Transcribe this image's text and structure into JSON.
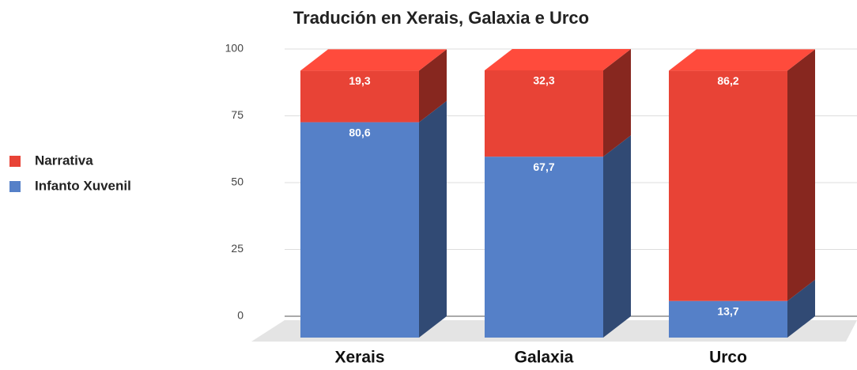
{
  "chart_data": {
    "type": "bar3d_stacked",
    "title": "Tradución en Xerais, Galaxia e Urco",
    "categories": [
      "Xerais",
      "Galaxia",
      "Urco"
    ],
    "series": [
      {
        "name": "Infanto Xuvenil",
        "color": "#5580c8",
        "values": [
          80.6,
          67.7,
          13.7
        ],
        "value_labels": [
          "80,6",
          "67,7",
          "13,7"
        ]
      },
      {
        "name": "Narrativa",
        "color": "#e84336",
        "values": [
          19.3,
          32.3,
          86.2
        ],
        "value_labels": [
          "19,3",
          "32,3",
          "86,2"
        ]
      }
    ],
    "ylim": [
      0,
      100
    ],
    "yticks": [
      0,
      25,
      50,
      75,
      100
    ],
    "grid": true,
    "legend": "left"
  }
}
